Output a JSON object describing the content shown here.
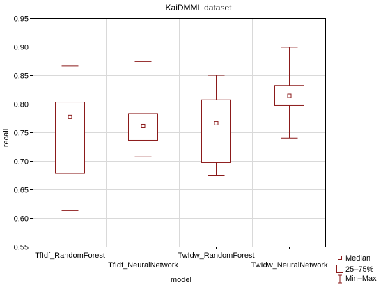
{
  "chart_data": {
    "type": "box",
    "title": "KaiDMML dataset",
    "xlabel": "model",
    "ylabel": "recall",
    "ylim": [
      0.55,
      0.95
    ],
    "yticks": [
      "0.55",
      "0.60",
      "0.65",
      "0.70",
      "0.75",
      "0.80",
      "0.85",
      "0.90",
      "0.95"
    ],
    "grid": true,
    "categories": [
      "TfIdf_RandomForest",
      "TfIdf_NeuralNetwork",
      "TwIdw_RandomForest",
      "TwIdw_NeuralNetwork"
    ],
    "boxes": [
      {
        "min": 0.613,
        "q1": 0.678,
        "median": 0.777,
        "q3": 0.803,
        "max": 0.866
      },
      {
        "min": 0.707,
        "q1": 0.736,
        "median": 0.761,
        "q3": 0.783,
        "max": 0.874
      },
      {
        "min": 0.675,
        "q1": 0.697,
        "median": 0.766,
        "q3": 0.807,
        "max": 0.85
      },
      {
        "min": 0.74,
        "q1": 0.797,
        "median": 0.814,
        "q3": 0.832,
        "max": 0.899
      }
    ],
    "color": "#8b1a1a",
    "legend": {
      "position": "bottom-right",
      "items": [
        "Median",
        "25–75%",
        "Min–Max"
      ]
    }
  }
}
